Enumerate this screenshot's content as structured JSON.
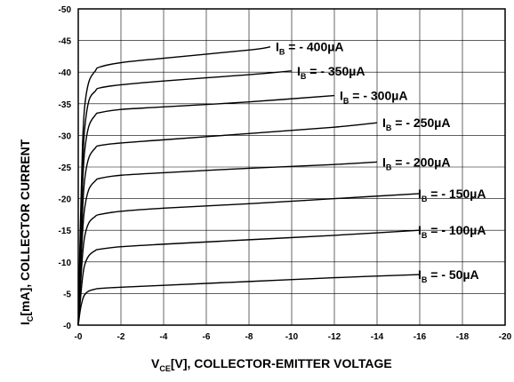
{
  "chart_data": {
    "type": "line",
    "xlabel": {
      "main": "V",
      "sub": "CE",
      "rest": "[V], COLLECTOR-EMITTER VOLTAGE"
    },
    "ylabel": {
      "main": "I",
      "sub": "C",
      "rest": "[mA], COLLECTOR CURRENT"
    },
    "xlim": [
      0,
      -20
    ],
    "ylim": [
      0,
      -50
    ],
    "grid": true,
    "x_ticks": [
      {
        "value": 0,
        "label": "-0"
      },
      {
        "value": -2,
        "label": "-2"
      },
      {
        "value": -4,
        "label": "-4"
      },
      {
        "value": -6,
        "label": "-6"
      },
      {
        "value": -8,
        "label": "-8"
      },
      {
        "value": -10,
        "label": "-10"
      },
      {
        "value": -12,
        "label": "-12"
      },
      {
        "value": -14,
        "label": "-14"
      },
      {
        "value": -16,
        "label": "-16"
      },
      {
        "value": -18,
        "label": "-18"
      },
      {
        "value": -20,
        "label": "-20"
      }
    ],
    "y_ticks": [
      {
        "value": 0,
        "label": "-0"
      },
      {
        "value": -5,
        "label": "-5"
      },
      {
        "value": -10,
        "label": "-10"
      },
      {
        "value": -15,
        "label": "-15"
      },
      {
        "value": -20,
        "label": "-20"
      },
      {
        "value": -25,
        "label": "-25"
      },
      {
        "value": -30,
        "label": "-30"
      },
      {
        "value": -35,
        "label": "-35"
      },
      {
        "value": -40,
        "label": "-40"
      },
      {
        "value": -45,
        "label": "-45"
      },
      {
        "value": -50,
        "label": "-50"
      }
    ],
    "series": [
      {
        "name": "I_B = - 50µA",
        "label_main": "I",
        "label_sub": "B",
        "label_rest": " = - 50µA",
        "x": [
          0,
          -0.1,
          -0.2,
          -0.3,
          -0.5,
          -0.8,
          -1,
          -2,
          -4,
          -8,
          -12,
          -16
        ],
        "y": [
          0,
          -2.5,
          -4,
          -4.8,
          -5.4,
          -5.7,
          -5.8,
          -6,
          -6.3,
          -6.9,
          -7.5,
          -8
        ]
      },
      {
        "name": "I_B = - 100µA",
        "label_main": "I",
        "label_sub": "B",
        "label_rest": " = - 100µA",
        "x": [
          0,
          -0.1,
          -0.2,
          -0.3,
          -0.5,
          -0.8,
          -1,
          -2,
          -4,
          -8,
          -12,
          -16
        ],
        "y": [
          0,
          -4,
          -7.5,
          -9.5,
          -11,
          -11.8,
          -12,
          -12.4,
          -12.8,
          -13.5,
          -14.2,
          -15
        ]
      },
      {
        "name": "I_B = - 150µA",
        "label_main": "I",
        "label_sub": "B",
        "label_rest": " = - 150µA",
        "x": [
          0,
          -0.1,
          -0.2,
          -0.3,
          -0.5,
          -0.8,
          -1,
          -2,
          -4,
          -8,
          -12,
          -16
        ],
        "y": [
          0,
          -6,
          -11,
          -14,
          -16.2,
          -17.2,
          -17.5,
          -18,
          -18.5,
          -19.2,
          -20,
          -20.8
        ]
      },
      {
        "name": "I_B = - 200µA",
        "label_main": "I",
        "label_sub": "B",
        "label_rest": " = - 200µA",
        "x": [
          0,
          -0.1,
          -0.2,
          -0.3,
          -0.5,
          -0.8,
          -1,
          -2,
          -4,
          -8,
          -12,
          -14
        ],
        "y": [
          0,
          -8,
          -14.5,
          -18.5,
          -21.5,
          -22.8,
          -23.2,
          -23.7,
          -24.1,
          -24.8,
          -25.4,
          -25.8
        ]
      },
      {
        "name": "I_B = - 250µA",
        "label_main": "I",
        "label_sub": "B",
        "label_rest": " = - 250µA",
        "x": [
          0,
          -0.1,
          -0.2,
          -0.3,
          -0.5,
          -0.8,
          -1,
          -2,
          -4,
          -8,
          -12,
          -14
        ],
        "y": [
          0,
          -10,
          -18,
          -23,
          -26.5,
          -28,
          -28.4,
          -28.8,
          -29.3,
          -30.3,
          -31.3,
          -32
        ]
      },
      {
        "name": "I_B = - 300µA",
        "label_main": "I",
        "label_sub": "B",
        "label_rest": " = - 300µA",
        "x": [
          0,
          -0.1,
          -0.2,
          -0.3,
          -0.5,
          -0.8,
          -1,
          -2,
          -4,
          -8,
          -12
        ],
        "y": [
          0,
          -12,
          -22,
          -27.5,
          -31.5,
          -33.2,
          -33.6,
          -34.1,
          -34.5,
          -35.3,
          -36.3
        ]
      },
      {
        "name": "I_B = - 350µA",
        "label_main": "I",
        "label_sub": "B",
        "label_rest": " = - 350µA",
        "x": [
          0,
          -0.1,
          -0.2,
          -0.3,
          -0.5,
          -0.8,
          -1,
          -2,
          -4,
          -8,
          -10
        ],
        "y": [
          0,
          -14,
          -25,
          -31,
          -35.5,
          -37,
          -37.5,
          -38,
          -38.6,
          -39.6,
          -40.2
        ]
      },
      {
        "name": "I_B = - 400µA",
        "label_main": "I",
        "label_sub": "B",
        "label_rest": " = - 400µA",
        "x": [
          0,
          -0.1,
          -0.2,
          -0.3,
          -0.5,
          -0.8,
          -1,
          -2,
          -4,
          -8,
          -9
        ],
        "y": [
          0,
          -16,
          -28.5,
          -34.5,
          -38.5,
          -40.2,
          -40.8,
          -41.5,
          -42.2,
          -43.5,
          -44
        ]
      }
    ]
  }
}
